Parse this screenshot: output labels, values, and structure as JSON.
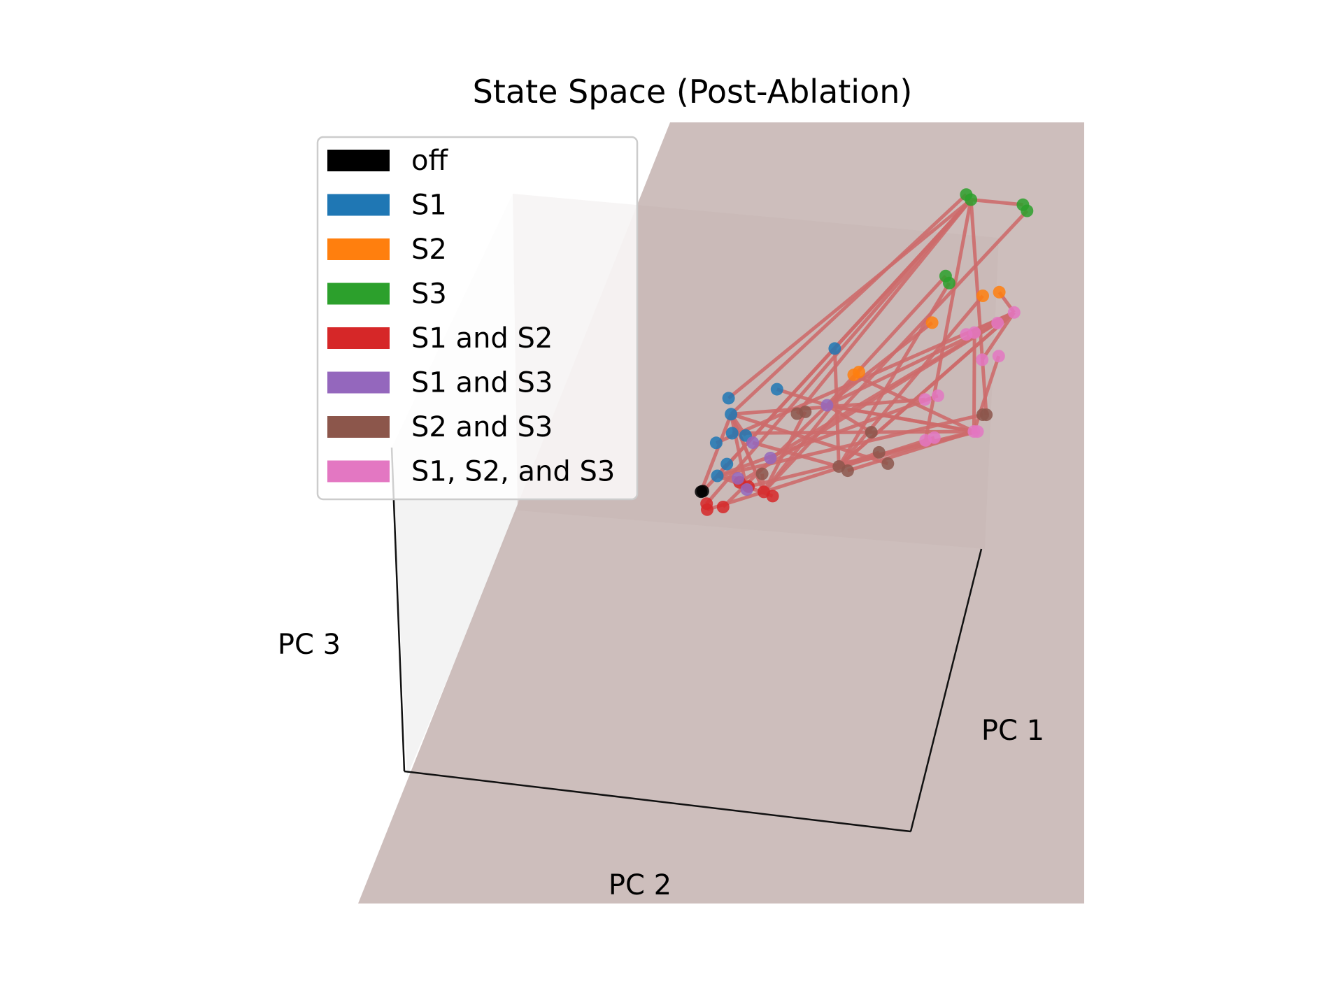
{
  "chart_data": {
    "type": "scatter",
    "projection": "3d",
    "title": "State Space (Post-Ablation)",
    "axes": {
      "x": {
        "label": "PC 1"
      },
      "y": {
        "label": "PC 2"
      },
      "z": {
        "label": "PC 3"
      }
    },
    "ticks_visible": false,
    "grid": false,
    "legend_position": "upper-left",
    "line_color": "#cd6b6b",
    "pane_color": "#c9b8b6",
    "series": [
      {
        "name": "off",
        "color": "#000000",
        "points": [
          [
            0.008,
            0.03,
            0.4
          ],
          [
            0.012,
            0.028,
            0.4
          ]
        ]
      },
      {
        "name": "S1",
        "color": "#1f77b4",
        "points": [
          [
            0.08,
            0.07,
            0.53
          ],
          [
            0.09,
            0.1,
            0.51
          ],
          [
            0.2,
            0.09,
            0.53
          ],
          [
            0.34,
            0.09,
            0.57
          ],
          [
            0.05,
            0.07,
            0.47
          ],
          [
            0.09,
            0.08,
            0.48
          ],
          [
            0.12,
            0.06,
            0.47
          ],
          [
            0.08,
            0.1,
            0.44
          ],
          [
            0.05,
            0.05,
            0.42
          ]
        ]
      },
      {
        "name": "S2",
        "color": "#ff7f0e",
        "points": [
          [
            0.4,
            0.1,
            0.53
          ],
          [
            0.58,
            0.12,
            0.58
          ],
          [
            0.7,
            0.1,
            0.6
          ],
          [
            0.74,
            0.1,
            0.6
          ],
          [
            0.39,
            0.12,
            0.53
          ]
        ]
      },
      {
        "name": "S3",
        "color": "#2ca02c",
        "points": [
          [
            0.66,
            0.1,
            0.75
          ],
          [
            0.67,
            0.09,
            0.74
          ],
          [
            0.8,
            0.12,
            0.72
          ],
          [
            0.81,
            0.12,
            0.71
          ],
          [
            0.61,
            0.1,
            0.64
          ],
          [
            0.62,
            0.11,
            0.63
          ]
        ]
      },
      {
        "name": "S1 and S2",
        "color": "#d62728",
        "points": [
          [
            0.1,
            0.02,
            0.4
          ],
          [
            0.12,
            0.01,
            0.39
          ],
          [
            0.16,
            0.03,
            0.38
          ],
          [
            0.18,
            0.02,
            0.37
          ],
          [
            0.02,
            0.02,
            0.38
          ],
          [
            0.02,
            0.01,
            0.37
          ],
          [
            0.06,
            0.02,
            0.37
          ]
        ]
      },
      {
        "name": "S1 and S3",
        "color": "#9467bd",
        "points": [
          [
            0.14,
            0.08,
            0.46
          ],
          [
            0.18,
            0.06,
            0.43
          ],
          [
            0.32,
            0.08,
            0.49
          ],
          [
            0.12,
            0.04,
            0.39
          ],
          [
            0.1,
            0.05,
            0.41
          ]
        ]
      },
      {
        "name": "S2 and S3",
        "color": "#8c564b",
        "points": [
          [
            0.25,
            0.1,
            0.49
          ],
          [
            0.27,
            0.1,
            0.49
          ],
          [
            0.43,
            0.1,
            0.44
          ],
          [
            0.45,
            0.11,
            0.41
          ],
          [
            0.35,
            0.09,
            0.4
          ],
          [
            0.37,
            0.08,
            0.39
          ],
          [
            0.47,
            0.1,
            0.39
          ],
          [
            0.7,
            0.1,
            0.43
          ],
          [
            0.71,
            0.11,
            0.43
          ],
          [
            0.16,
            0.06,
            0.41
          ]
        ]
      },
      {
        "name": "S1, S2, and S3",
        "color": "#e377c2",
        "points": [
          [
            0.74,
            0.13,
            0.56
          ],
          [
            0.78,
            0.13,
            0.57
          ],
          [
            0.7,
            0.11,
            0.51
          ],
          [
            0.74,
            0.11,
            0.51
          ],
          [
            0.56,
            0.1,
            0.47
          ],
          [
            0.59,
            0.09,
            0.47
          ],
          [
            0.56,
            0.09,
            0.41
          ],
          [
            0.58,
            0.08,
            0.41
          ],
          [
            0.68,
            0.11,
            0.41
          ],
          [
            0.69,
            0.12,
            0.41
          ],
          [
            0.66,
            0.1,
            0.55
          ],
          [
            0.68,
            0.1,
            0.55
          ]
        ]
      }
    ]
  }
}
